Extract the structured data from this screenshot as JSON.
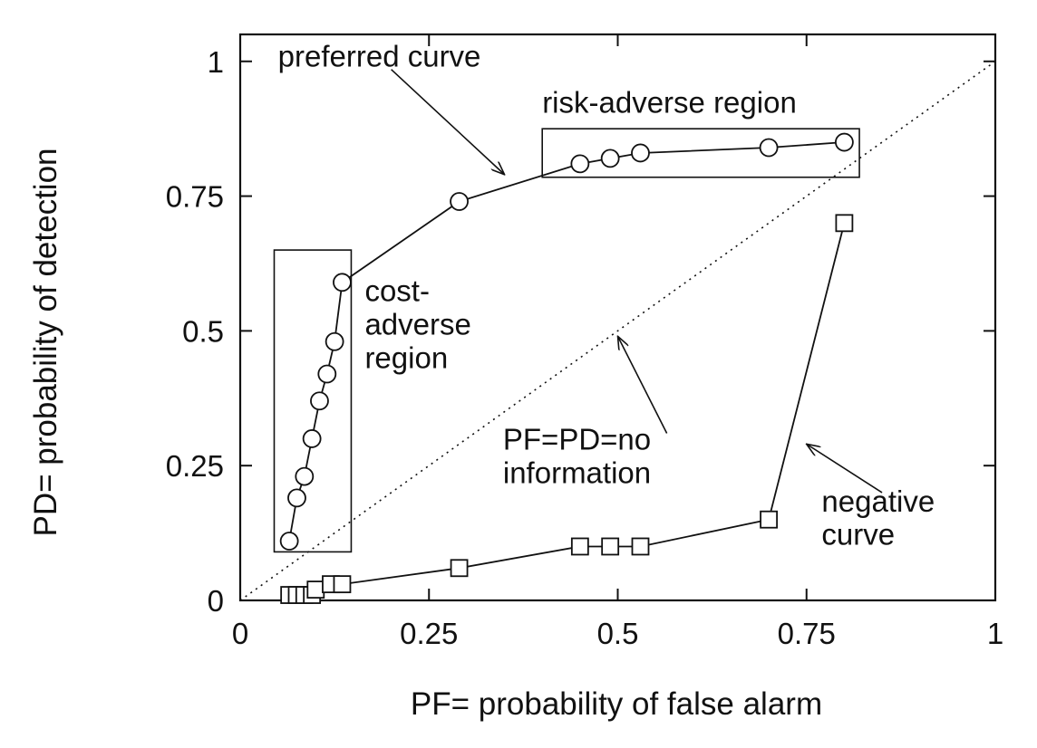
{
  "chart_data": {
    "type": "line",
    "title": "",
    "xlabel": "PF= probability of false alarm",
    "ylabel": "PD= probability of detection",
    "xlim": [
      0,
      1
    ],
    "ylim": [
      0,
      1.05
    ],
    "xticks": [
      {
        "value": 0,
        "label": "0"
      },
      {
        "value": 0.25,
        "label": "0.25"
      },
      {
        "value": 0.5,
        "label": "0.5"
      },
      {
        "value": 0.75,
        "label": "0.75"
      },
      {
        "value": 1,
        "label": "1"
      }
    ],
    "yticks": [
      {
        "value": 0,
        "label": "0"
      },
      {
        "value": 0.25,
        "label": "0.25"
      },
      {
        "value": 0.5,
        "label": "0.5"
      },
      {
        "value": 0.75,
        "label": "0.75"
      },
      {
        "value": 1,
        "label": "1"
      }
    ],
    "grid": false,
    "series": [
      {
        "marker": "circle",
        "x": [
          0.065,
          0.075,
          0.085,
          0.095,
          0.105,
          0.115,
          0.125,
          0.135,
          0.29,
          0.45,
          0.49,
          0.53,
          0.7,
          0.8
        ],
        "y": [
          0.11,
          0.19,
          0.23,
          0.3,
          0.37,
          0.42,
          0.48,
          0.59,
          0.74,
          0.81,
          0.82,
          0.83,
          0.84,
          0.85
        ]
      },
      {
        "marker": "square",
        "x": [
          0.065,
          0.075,
          0.085,
          0.095,
          0.1,
          0.12,
          0.135,
          0.29,
          0.45,
          0.49,
          0.53,
          0.7,
          0.8
        ],
        "y": [
          0.01,
          0.01,
          0.01,
          0.01,
          0.02,
          0.03,
          0.03,
          0.06,
          0.1,
          0.1,
          0.1,
          0.15,
          0.7
        ]
      }
    ],
    "reference_line": {
      "x": [
        0,
        1
      ],
      "y": [
        0,
        1
      ],
      "style": "dotted"
    },
    "regions": [
      {
        "x": [
          0.045,
          0.147
        ],
        "y": [
          0.09,
          0.65
        ]
      },
      {
        "x": [
          0.4,
          0.82
        ],
        "y": [
          0.785,
          0.875
        ]
      }
    ],
    "annotations": [
      {
        "lines": [
          "preferred curve"
        ],
        "x": 0.05,
        "y": 0.99,
        "arrow_to": [
          0.35,
          0.79
        ],
        "arrow_from": [
          0.2,
          0.985
        ]
      },
      {
        "lines": [
          "risk-adverse region"
        ],
        "x": 0.4,
        "y": 0.905
      },
      {
        "lines": [
          "cost-",
          "adverse",
          "region"
        ],
        "x": 0.165,
        "y": 0.555
      },
      {
        "lines": [
          "PF=PD=no",
          "information"
        ],
        "x": 0.348,
        "y": 0.28,
        "arrow_to": [
          0.5,
          0.49
        ],
        "arrow_from": [
          0.565,
          0.31
        ]
      },
      {
        "lines": [
          "negative",
          "curve"
        ],
        "x": 0.77,
        "y": 0.165,
        "arrow_to": [
          0.75,
          0.29
        ],
        "arrow_from": [
          0.85,
          0.2
        ]
      }
    ]
  }
}
